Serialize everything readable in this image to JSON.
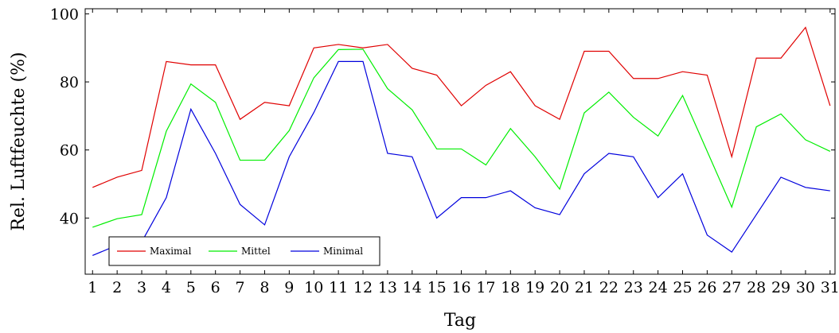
{
  "chart_data": {
    "type": "line",
    "xlabel": "Tag",
    "ylabel": "Rel. Luftfeuchte (%)",
    "x": [
      1,
      2,
      3,
      4,
      5,
      6,
      7,
      8,
      9,
      10,
      11,
      12,
      13,
      14,
      15,
      16,
      17,
      18,
      19,
      20,
      21,
      22,
      23,
      24,
      25,
      26,
      27,
      28,
      29,
      30,
      31
    ],
    "xlim": [
      0.7,
      31.2
    ],
    "ylim": [
      23.5,
      101.5
    ],
    "yticks": [
      40,
      60,
      80,
      100
    ],
    "grid": false,
    "legend_position": "bottom-left",
    "series": [
      {
        "name": "Maximal",
        "color": "#e00000",
        "values": [
          49,
          52,
          54,
          86,
          85,
          85,
          69,
          74,
          73,
          90,
          91,
          90,
          91,
          84,
          82,
          73,
          79,
          83,
          73,
          69,
          89,
          89,
          81,
          81,
          83,
          82,
          58,
          87,
          87,
          96,
          73
        ]
      },
      {
        "name": "Mittel",
        "color": "#00ee00",
        "values": [
          37.3,
          39.8,
          41,
          65.5,
          79.4,
          74,
          57,
          57,
          65.7,
          81.2,
          89.5,
          89.6,
          78,
          71.8,
          60.3,
          60.3,
          55.6,
          66.3,
          58,
          48.5,
          70.9,
          77,
          69.6,
          64.1,
          76,
          59.6,
          43.2,
          66.8,
          70.6,
          63,
          59.6
        ]
      },
      {
        "name": "Minimal",
        "color": "#0000dd",
        "values": [
          29,
          32,
          33,
          46,
          72,
          59,
          44,
          38,
          58,
          71,
          86,
          86,
          59,
          58,
          40,
          46,
          46,
          48,
          43,
          41,
          53,
          59,
          58,
          46,
          53,
          35,
          30,
          41,
          52,
          49,
          48
        ]
      }
    ]
  }
}
